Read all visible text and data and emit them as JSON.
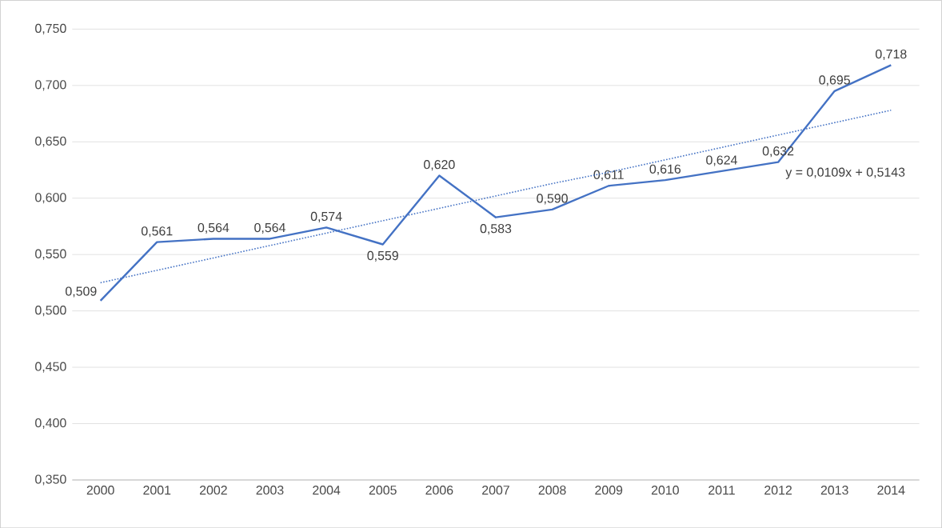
{
  "chart_data": {
    "type": "line",
    "categories": [
      "2000",
      "2001",
      "2002",
      "2003",
      "2004",
      "2005",
      "2006",
      "2007",
      "2008",
      "2009",
      "2010",
      "2011",
      "2012",
      "2013",
      "2014"
    ],
    "series": [
      {
        "color": "#4472c4",
        "line_style": "solid",
        "values": [
          0.509,
          0.561,
          0.564,
          0.564,
          0.574,
          0.559,
          0.62,
          0.583,
          0.59,
          0.611,
          0.616,
          0.624,
          0.632,
          0.695,
          0.718
        ],
        "value_labels": [
          "0,509",
          "0,561",
          "0,564",
          "0,564",
          "0,574",
          "0,559",
          "0,620",
          "0,583",
          "0,590",
          "0,611",
          "0,616",
          "0,624",
          "0,632",
          "0,695",
          "0,718"
        ]
      },
      {
        "color": "#4472c4",
        "line_style": "dotted",
        "values": [
          0.525,
          0.536,
          0.547,
          0.558,
          0.569,
          0.58,
          0.591,
          0.602,
          0.613,
          0.623,
          0.634,
          0.645,
          0.656,
          0.667,
          0.678
        ]
      }
    ],
    "ylim": [
      0.35,
      0.75
    ],
    "yticks": [
      {
        "value": 0.35,
        "label": "0,350"
      },
      {
        "value": 0.4,
        "label": "0,400"
      },
      {
        "value": 0.45,
        "label": "0,450"
      },
      {
        "value": 0.5,
        "label": "0,500"
      },
      {
        "value": 0.55,
        "label": "0,550"
      },
      {
        "value": 0.6,
        "label": "0,600"
      },
      {
        "value": 0.65,
        "label": "0,650"
      },
      {
        "value": 0.7,
        "label": "0,700"
      },
      {
        "value": 0.75,
        "label": "0,750"
      }
    ],
    "grid": "y",
    "annotations": [
      "y = 0,0109x + 0,5143"
    ]
  }
}
